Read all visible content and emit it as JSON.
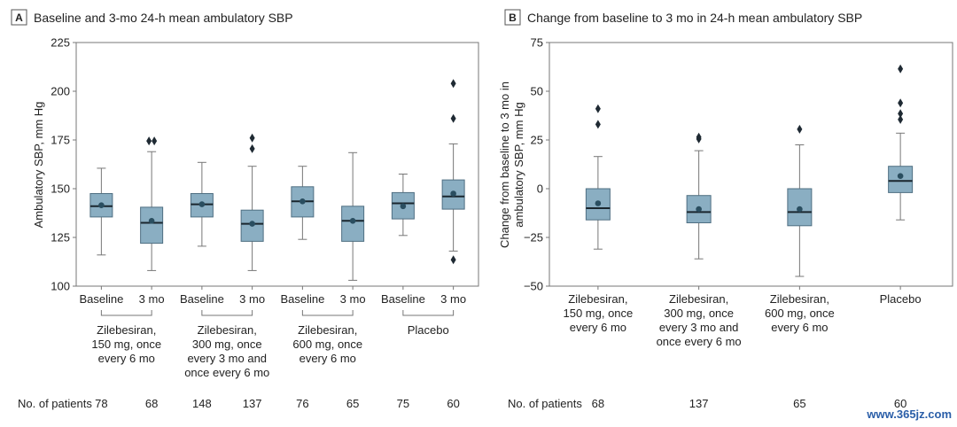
{
  "colors": {
    "box_fill": "#8aaec2",
    "box_stroke": "#4f6f82",
    "whisker": "#777777",
    "outlier": "#1f2a33",
    "mean": "#2a4e60",
    "median": "#1a262e",
    "frame": "#777777"
  },
  "chart_data": [
    {
      "type": "box",
      "panel": "A",
      "title": "Baseline and 3-mo 24-h mean ambulatory SBP",
      "ylabel": "Ambulatory SBP, mm Hg",
      "ylim": [
        100,
        225
      ],
      "yticks": [
        "100",
        "125",
        "150",
        "175",
        "200",
        "225"
      ],
      "boxes": [
        {
          "label": "Baseline",
          "whisker_low": 116,
          "q1": 135.5,
          "median": 141,
          "mean": 141.5,
          "q3": 147.5,
          "whisker_high": 160.5,
          "outliers": [],
          "n": "78"
        },
        {
          "label": "3 mo",
          "whisker_low": 108,
          "q1": 122,
          "median": 132.5,
          "mean": 133.5,
          "q3": 140.5,
          "whisker_high": 169,
          "outliers": [
            174.5,
            174.5
          ],
          "n": "68"
        },
        {
          "label": "Baseline",
          "whisker_low": 120.5,
          "q1": 135.5,
          "median": 142,
          "mean": 142,
          "q3": 147.5,
          "whisker_high": 163.5,
          "outliers": [],
          "n": "148"
        },
        {
          "label": "3 mo",
          "whisker_low": 108,
          "q1": 123,
          "median": 132,
          "mean": 132,
          "q3": 139,
          "whisker_high": 161.5,
          "outliers": [
            170.5,
            176
          ],
          "n": "137"
        },
        {
          "label": "Baseline",
          "whisker_low": 124,
          "q1": 135.5,
          "median": 143.5,
          "mean": 143.5,
          "q3": 151,
          "whisker_high": 161.5,
          "outliers": [],
          "n": "76"
        },
        {
          "label": "3 mo",
          "whisker_low": 103,
          "q1": 123,
          "median": 133.5,
          "mean": 133.5,
          "q3": 141,
          "whisker_high": 168.5,
          "outliers": [],
          "n": "65"
        },
        {
          "label": "Baseline",
          "whisker_low": 126,
          "q1": 134.5,
          "median": 142.5,
          "mean": 141,
          "q3": 148,
          "whisker_high": 157.5,
          "outliers": [],
          "n": "75"
        },
        {
          "label": "3 mo",
          "whisker_low": 118,
          "q1": 139.5,
          "median": 146,
          "mean": 147.5,
          "q3": 154.5,
          "whisker_high": 173,
          "outliers": [
            186,
            204,
            113.5
          ],
          "n": "60"
        }
      ],
      "groups": [
        {
          "lines": [
            "Zilebesiran,",
            "150 mg, once",
            "every 6 mo"
          ]
        },
        {
          "lines": [
            "Zilebesiran,",
            "300 mg, once",
            "every 3 mo and",
            "once every 6 mo"
          ]
        },
        {
          "lines": [
            "Zilebesiran,",
            "600 mg, once",
            "every 6 mo"
          ]
        },
        {
          "lines": [
            "Placebo"
          ]
        }
      ],
      "patients_label": "No. of patients"
    },
    {
      "type": "box",
      "panel": "B",
      "title": "Change from baseline to 3 mo in 24-h mean ambulatory SBP",
      "ylabel_lines": [
        "Change from baseline to 3 mo in",
        "ambulatory SBP, mm Hg"
      ],
      "ylim": [
        -50,
        75
      ],
      "yticks": [
        "−50",
        "−25",
        "0",
        "25",
        "50",
        "75"
      ],
      "boxes": [
        {
          "lines": [
            "Zilebesiran,",
            "150 mg, once",
            "every 6 mo"
          ],
          "whisker_low": -31,
          "q1": -16,
          "median": -10,
          "mean": -7.5,
          "q3": 0,
          "whisker_high": 16.5,
          "outliers": [
            33,
            41
          ],
          "n": "68"
        },
        {
          "lines": [
            "Zilebesiran,",
            "300 mg, once",
            "every 3 mo and",
            "once every 6 mo"
          ],
          "whisker_low": -36,
          "q1": -17.5,
          "median": -12,
          "mean": -10.5,
          "q3": -3.5,
          "whisker_high": 19.5,
          "outliers": [
            25.5,
            26.5
          ],
          "n": "137"
        },
        {
          "lines": [
            "Zilebesiran,",
            "600 mg, once",
            "every 6 mo"
          ],
          "whisker_low": -45,
          "q1": -19,
          "median": -12,
          "mean": -10.5,
          "q3": 0,
          "whisker_high": 22.5,
          "outliers": [
            30.5
          ],
          "n": "65"
        },
        {
          "lines": [
            "Placebo"
          ],
          "whisker_low": -16,
          "q1": -2,
          "median": 4,
          "mean": 6.5,
          "q3": 11.5,
          "whisker_high": 28.5,
          "outliers": [
            35.5,
            38.5,
            44,
            61.5
          ],
          "n": "60"
        }
      ],
      "patients_label": "No. of patients"
    }
  ],
  "watermark": "www.365jz.com"
}
